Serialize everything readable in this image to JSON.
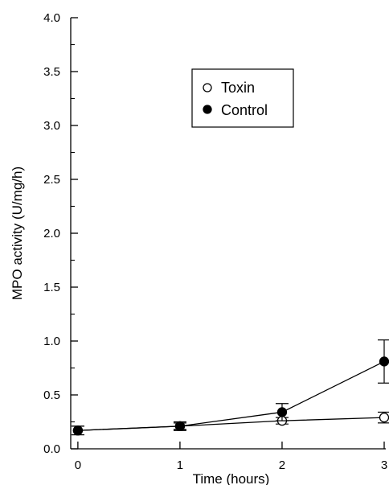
{
  "chart_data": {
    "type": "line",
    "xlabel": "Time (hours)",
    "ylabel": "MPO activity (U/mg/h)",
    "x": [
      0,
      1,
      2,
      3
    ],
    "xlim": [
      -0.07,
      3.0
    ],
    "ylim": [
      0.0,
      4.0
    ],
    "xticks": [
      0,
      1,
      2,
      3
    ],
    "yticks": [
      0.0,
      0.5,
      1.0,
      1.5,
      2.0,
      2.5,
      3.0,
      3.5,
      4.0
    ],
    "ytick_labels": [
      "0.0",
      "0.5",
      "1.0",
      "1.5",
      "2.0",
      "2.5",
      "3.0",
      "3.5",
      "4.0"
    ],
    "legend_position": "upper-center",
    "grid": false,
    "series": [
      {
        "name": "Toxin",
        "marker": "open-circle",
        "values": [
          0.17,
          0.21,
          0.26,
          0.29
        ],
        "errors": [
          0.04,
          0.03,
          0.03,
          0.05
        ]
      },
      {
        "name": "Control",
        "marker": "filled-circle",
        "values": [
          0.17,
          0.21,
          0.34,
          0.81
        ],
        "errors": [
          0.04,
          0.04,
          0.08,
          0.2
        ]
      }
    ]
  }
}
